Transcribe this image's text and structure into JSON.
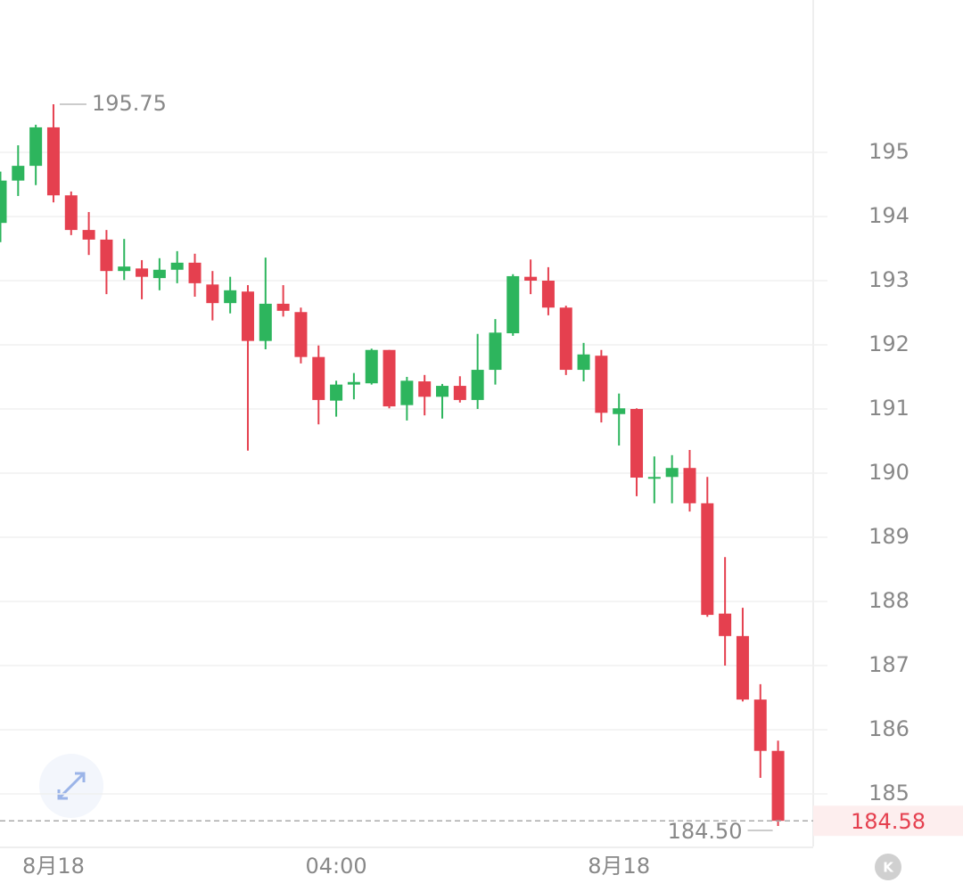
{
  "chart_data": {
    "type": "candlestick",
    "categories": [
      null,
      null,
      null,
      "8月18",
      null,
      null,
      null,
      null,
      null,
      null,
      null,
      null,
      null,
      null,
      null,
      null,
      null,
      null,
      null,
      "04:00",
      null,
      null,
      null,
      null,
      null,
      null,
      null,
      null,
      null,
      null,
      null,
      null,
      null,
      null,
      null,
      "8月18",
      null,
      null,
      null,
      null,
      null,
      null,
      null,
      null,
      null
    ],
    "series": [
      {
        "up_color": "#2db55d",
        "down_color": "#e5404f",
        "open": [
          193.9,
          194.56,
          194.79,
          195.39,
          194.33,
          193.79,
          193.64,
          193.15,
          193.19,
          193.04,
          193.17,
          193.28,
          192.94,
          192.65,
          192.83,
          192.06,
          192.64,
          192.51,
          191.81,
          191.13,
          191.38,
          191.4,
          191.92,
          191.06,
          191.43,
          191.19,
          191.36,
          191.14,
          191.61,
          192.18,
          193.06,
          193.0,
          192.58,
          191.61,
          191.83,
          190.92,
          191.0,
          189.92,
          189.94,
          190.08,
          189.53,
          187.81,
          187.46,
          186.47,
          185.67
        ],
        "high": [
          194.7,
          195.11,
          195.43,
          195.75,
          194.39,
          194.07,
          193.79,
          193.65,
          193.32,
          193.35,
          193.46,
          193.42,
          193.15,
          193.06,
          192.93,
          193.36,
          192.93,
          192.58,
          191.99,
          191.44,
          191.56,
          191.94,
          191.92,
          191.5,
          191.53,
          191.39,
          191.51,
          192.17,
          192.4,
          193.1,
          193.33,
          193.21,
          192.61,
          192.03,
          191.92,
          191.24,
          191.01,
          190.26,
          190.28,
          190.36,
          189.94,
          188.69,
          187.9,
          186.71,
          185.83
        ],
        "low": [
          193.6,
          194.32,
          194.49,
          194.22,
          193.71,
          193.4,
          192.79,
          193.01,
          192.71,
          192.85,
          192.96,
          192.75,
          192.38,
          192.49,
          190.35,
          191.93,
          192.44,
          191.71,
          190.76,
          190.88,
          191.15,
          191.38,
          191.01,
          190.82,
          190.9,
          190.85,
          191.1,
          191.0,
          191.38,
          192.14,
          192.79,
          192.46,
          191.53,
          191.43,
          190.79,
          190.43,
          189.64,
          189.53,
          189.53,
          189.4,
          187.76,
          187.0,
          186.44,
          185.25,
          184.5
        ],
        "close": [
          194.56,
          194.79,
          195.39,
          194.33,
          193.79,
          193.64,
          193.15,
          193.22,
          193.06,
          193.17,
          193.28,
          192.96,
          192.65,
          192.85,
          192.06,
          192.64,
          192.53,
          191.81,
          191.14,
          191.38,
          191.42,
          191.92,
          191.04,
          191.44,
          191.19,
          191.36,
          191.14,
          191.61,
          192.19,
          193.07,
          193.0,
          192.58,
          191.61,
          191.85,
          190.94,
          191.01,
          189.93,
          189.94,
          190.08,
          189.53,
          187.79,
          187.46,
          186.47,
          185.67,
          184.58
        ]
      }
    ],
    "ylim": [
      184.18,
      197.375
    ],
    "yticks": [
      185,
      186,
      187,
      188,
      189,
      190,
      191,
      192,
      193,
      194,
      195
    ],
    "grid": true,
    "max_label": 195.75,
    "min_label": {
      "value": 184.5,
      "label": "184.50"
    },
    "last_price": 184.58,
    "icon_label": "K"
  }
}
